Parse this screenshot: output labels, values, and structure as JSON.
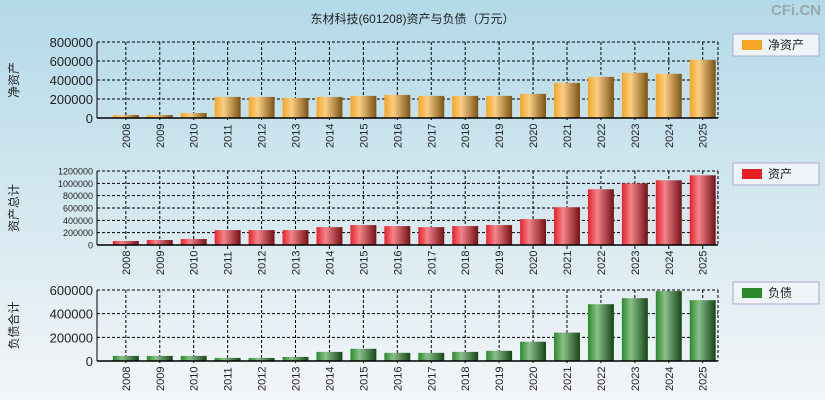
{
  "title": "东材科技(601208)资产与负债（万元）",
  "watermark": "CFi.CN",
  "chart_data": [
    {
      "type": "bar",
      "ylabel": "净资产",
      "legend": "净资产",
      "color": "#f5a623",
      "ylim": [
        0,
        800000
      ],
      "yticks": [
        0,
        200000,
        400000,
        600000,
        800000
      ],
      "categories": [
        "2008",
        "2009",
        "2010",
        "2011",
        "2012",
        "2013",
        "2014",
        "2015",
        "2016",
        "2017",
        "2018",
        "2019",
        "2020",
        "2021",
        "2022",
        "2023",
        "2024",
        "2025"
      ],
      "values": [
        32000,
        32000,
        53000,
        222000,
        222000,
        211000,
        222000,
        233000,
        243000,
        233000,
        233000,
        233000,
        254000,
        370000,
        433000,
        476000,
        465000,
        613000
      ]
    },
    {
      "type": "bar",
      "ylabel": "资产总计",
      "legend": "资产",
      "color": "#e8202a",
      "ylim": [
        0,
        1200000
      ],
      "yticks": [
        0,
        200000,
        400000,
        600000,
        800000,
        1000000,
        1200000
      ],
      "categories": [
        "2008",
        "2009",
        "2010",
        "2011",
        "2012",
        "2013",
        "2014",
        "2015",
        "2016",
        "2017",
        "2018",
        "2019",
        "2020",
        "2021",
        "2022",
        "2023",
        "2024",
        "2025"
      ],
      "values": [
        65000,
        81000,
        97000,
        242000,
        242000,
        242000,
        290000,
        323000,
        307000,
        290000,
        307000,
        323000,
        420000,
        613000,
        904000,
        1000000,
        1049000,
        1130000
      ]
    },
    {
      "type": "bar",
      "ylabel": "负债合计",
      "legend": "负债",
      "color": "#2a8a2a",
      "ylim": [
        0,
        600000
      ],
      "yticks": [
        0,
        200000,
        400000,
        600000
      ],
      "categories": [
        "2008",
        "2009",
        "2010",
        "2011",
        "2012",
        "2013",
        "2014",
        "2015",
        "2016",
        "2017",
        "2018",
        "2019",
        "2020",
        "2021",
        "2022",
        "2023",
        "2024",
        "2025"
      ],
      "values": [
        43000,
        43000,
        43000,
        26000,
        26000,
        34000,
        77000,
        103000,
        69000,
        69000,
        77000,
        86000,
        163000,
        240000,
        480000,
        531000,
        591000,
        514000
      ]
    }
  ]
}
